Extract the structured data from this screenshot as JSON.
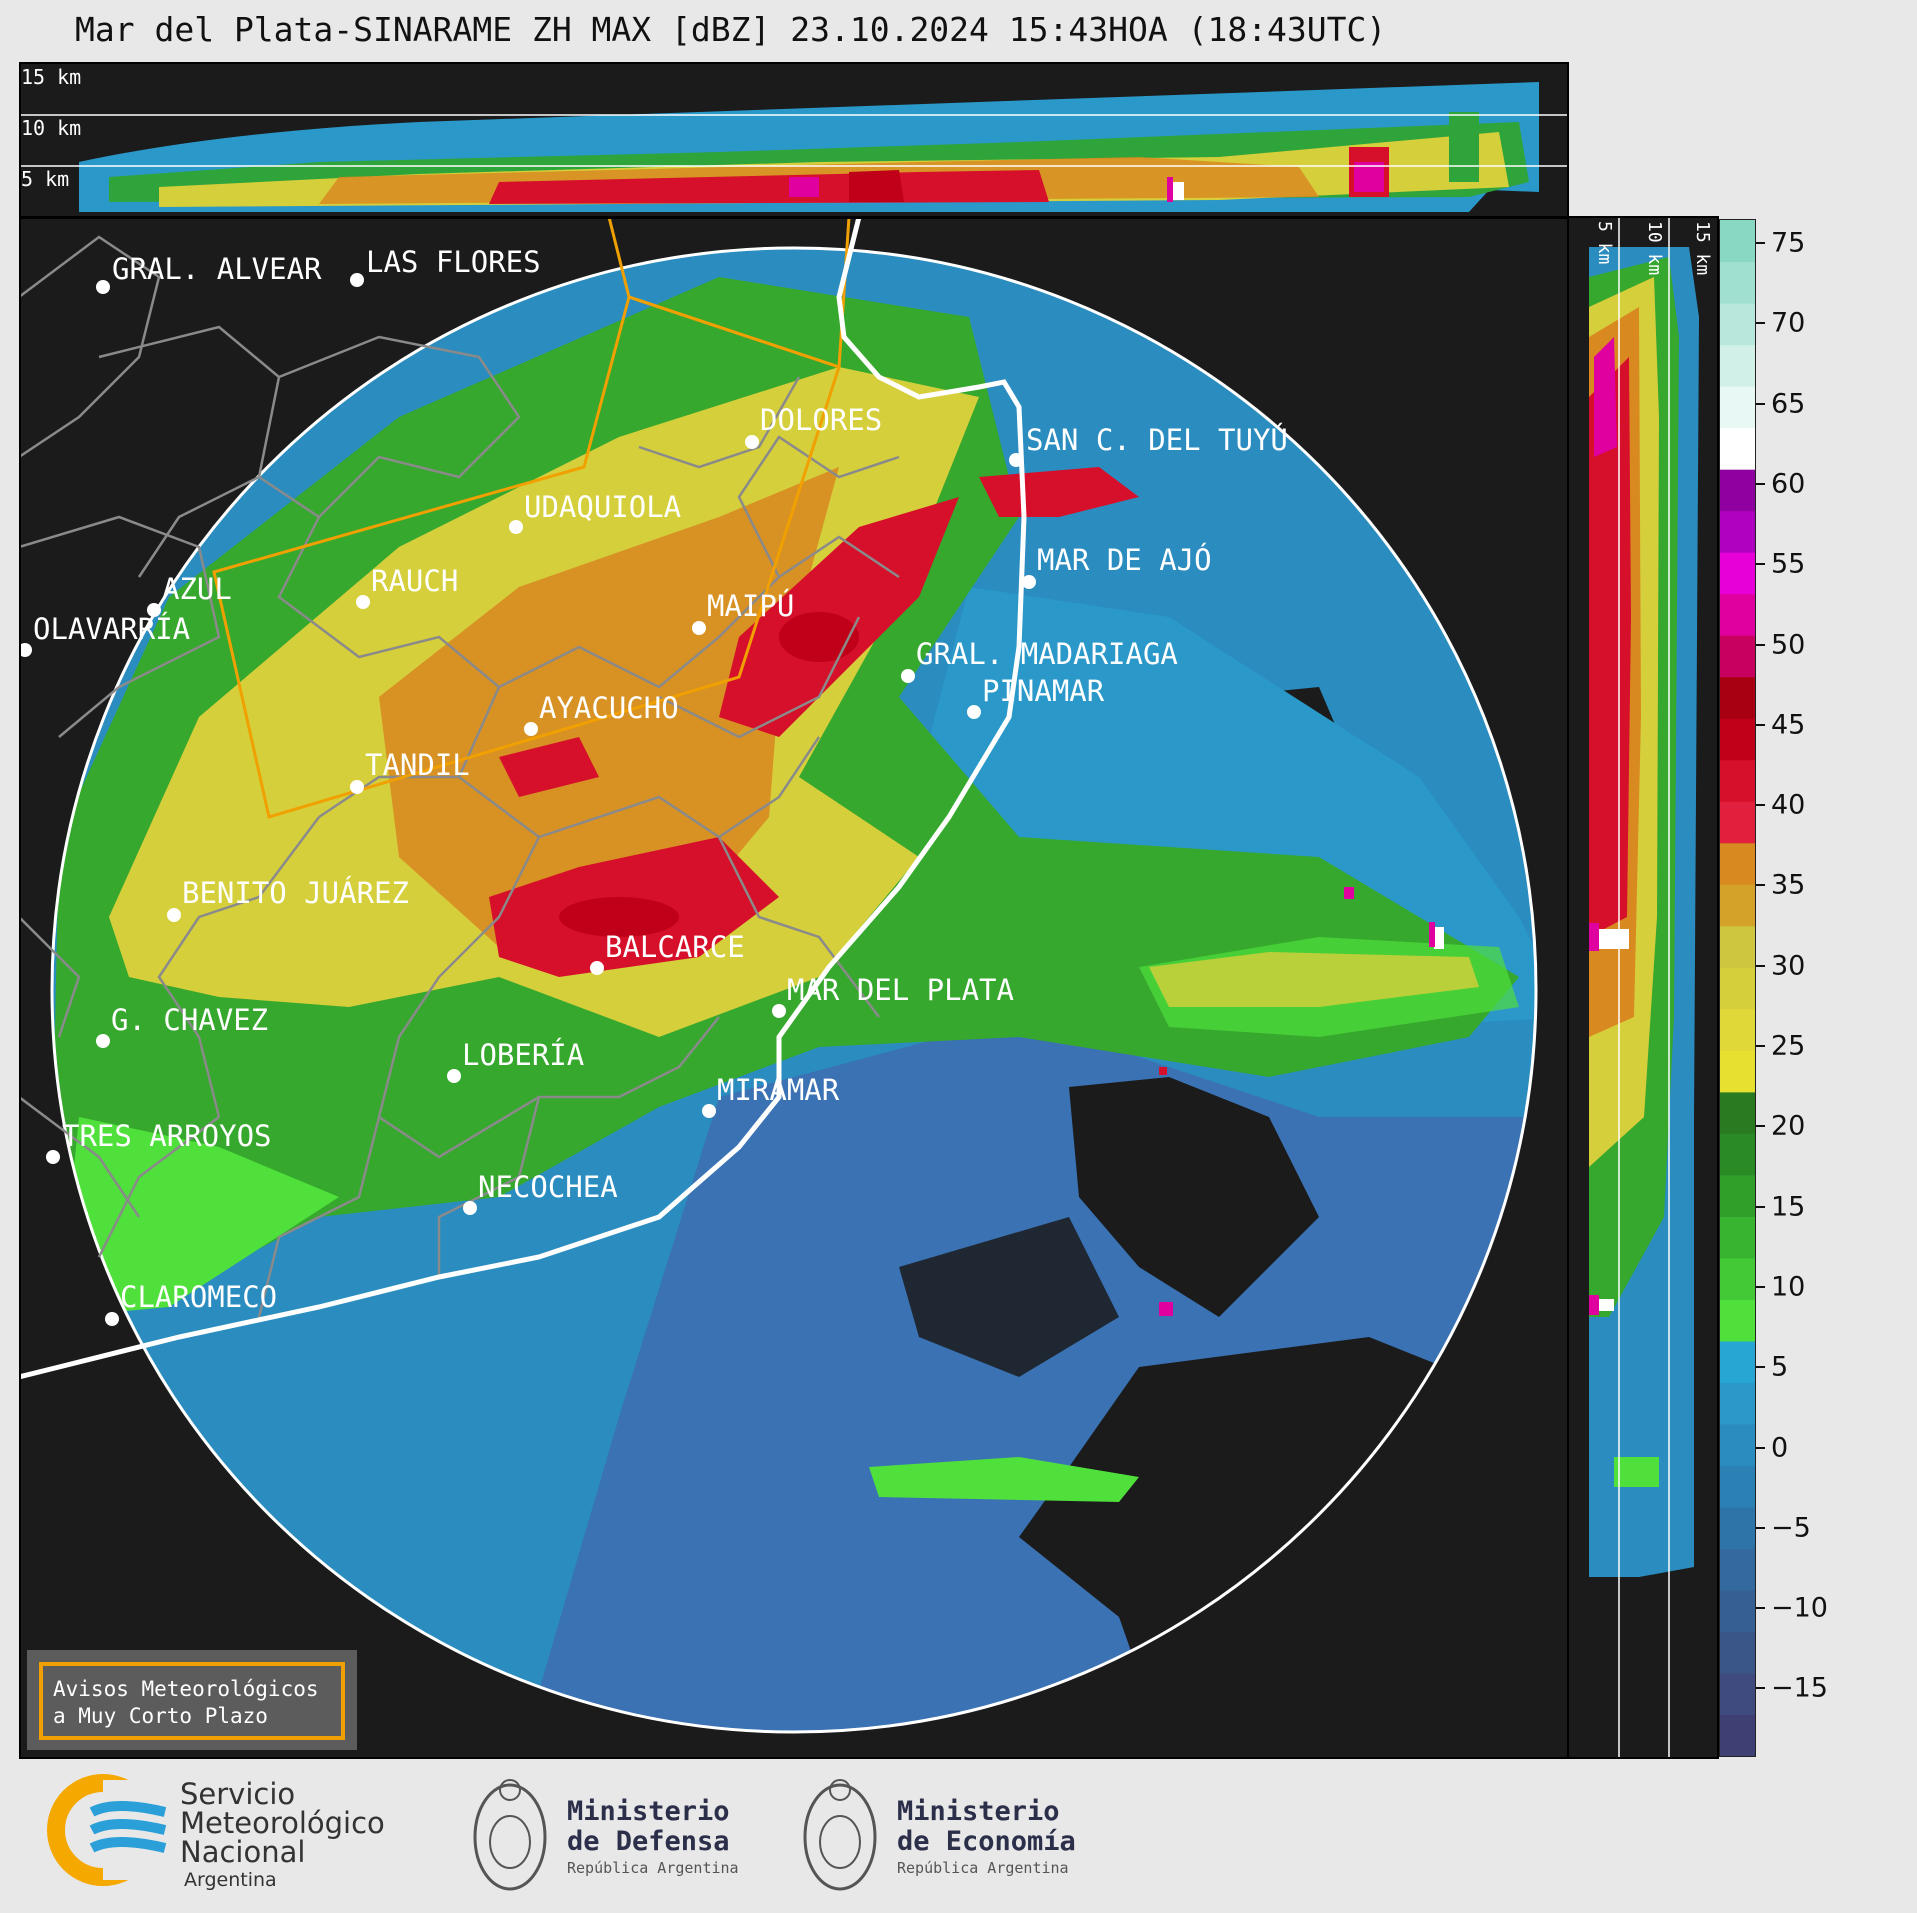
{
  "title": "Mar del Plata-SINARAME ZH MAX [dBZ] 23.10.2024 15:43HOA (18:43UTC)",
  "height_labels": [
    "15 km",
    "10 km",
    "5 km"
  ],
  "cities": [
    {
      "name": "GRAL. ALVEAR"
    },
    {
      "name": "LAS FLORES"
    },
    {
      "name": "DOLORES"
    },
    {
      "name": "SAN C. DEL TUYÚ"
    },
    {
      "name": "UDAQUIOLA"
    },
    {
      "name": "MAR DE AJÓ"
    },
    {
      "name": "AZUL"
    },
    {
      "name": "RAUCH"
    },
    {
      "name": "MAIPÚ"
    },
    {
      "name": "OLAVARRÍA"
    },
    {
      "name": "GRAL. MADARIAGA"
    },
    {
      "name": "PINAMAR"
    },
    {
      "name": "AYACUCHO"
    },
    {
      "name": "TANDIL"
    },
    {
      "name": "BENITO JUÁREZ"
    },
    {
      "name": "BALCARCE"
    },
    {
      "name": "MAR DEL PLATA"
    },
    {
      "name": "G. CHAVEZ"
    },
    {
      "name": "LOBERÍA"
    },
    {
      "name": "MIRAMAR"
    },
    {
      "name": "TRES ARROYOS"
    },
    {
      "name": "NECOCHEA"
    },
    {
      "name": "CLAROMECO"
    }
  ],
  "warning_box": {
    "line1": "Avisos Meteorológicos",
    "line2": "a Muy Corto Plazo"
  },
  "colorbar": {
    "unit": "dBZ",
    "ticks": [
      "75",
      "70",
      "65",
      "60",
      "55",
      "50",
      "45",
      "40",
      "35",
      "30",
      "25",
      "20",
      "15",
      "10",
      "5",
      "0",
      "−5",
      "−10",
      "−15"
    ],
    "colors": [
      "#3f3f74",
      "#3f4a7e",
      "#3a5588",
      "#365f93",
      "#33699e",
      "#2f74a9",
      "#2b80b4",
      "#2a8cbf",
      "#2a98c9",
      "#27a5d3",
      "#4fe03c",
      "#43c936",
      "#39b430",
      "#2f9f2a",
      "#2a8a25",
      "#2a7a22",
      "#e8e030",
      "#dfd838",
      "#d6cf3c",
      "#cdc63e",
      "#d4a228",
      "#d88a20",
      "#e0203c",
      "#d6102a",
      "#c00018",
      "#a80012",
      "#c80060",
      "#e000a0",
      "#e800d8",
      "#b000c0",
      "#9000a0",
      "#ffffff",
      "#e8f8f4",
      "#d0f0e8",
      "#b8e8dc",
      "#a0e0d0",
      "#88d8c4"
    ]
  },
  "footer": {
    "smn_line1": "Servicio",
    "smn_line2": "Meteorológico",
    "smn_line3": "Nacional",
    "smn_line4": "Argentina",
    "defensa_line1": "Ministerio",
    "defensa_line2": "de Defensa",
    "defensa_line3": "República Argentina",
    "economia_line1": "Ministerio",
    "economia_line2": "de Economía",
    "economia_line3": "República Argentina"
  }
}
